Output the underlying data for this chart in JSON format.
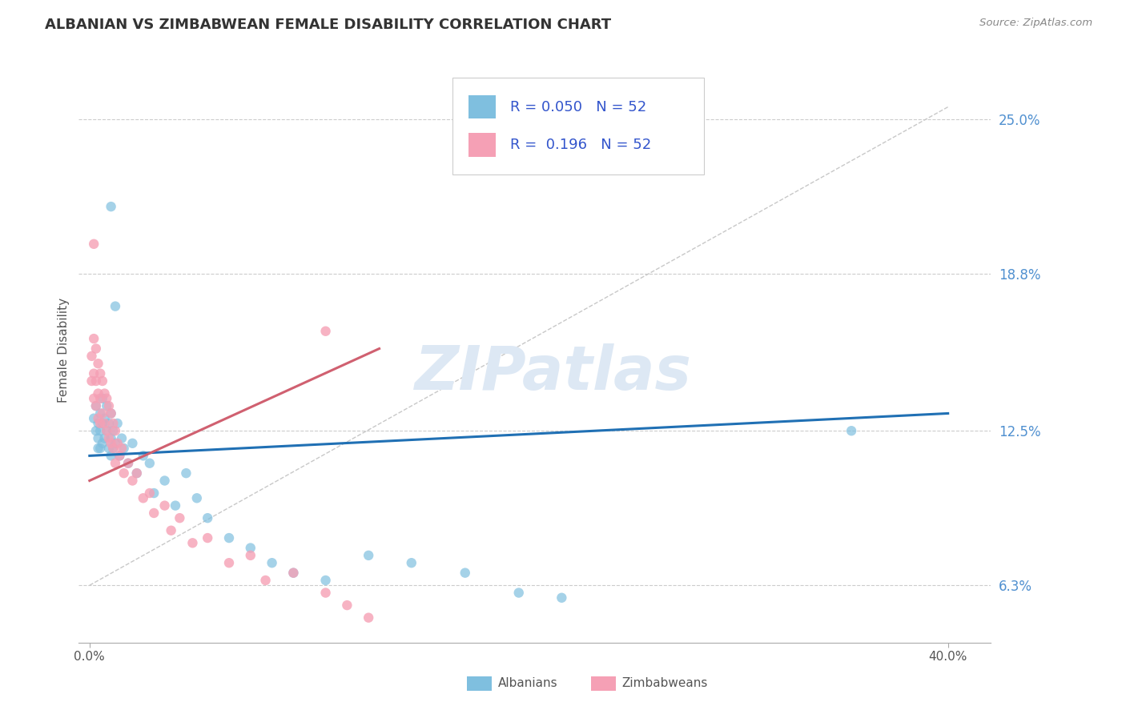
{
  "title": "ALBANIAN VS ZIMBABWEAN FEMALE DISABILITY CORRELATION CHART",
  "source": "Source: ZipAtlas.com",
  "ylabel": "Female Disability",
  "y_ticks": [
    0.063,
    0.125,
    0.188,
    0.25
  ],
  "y_tick_labels": [
    "6.3%",
    "12.5%",
    "18.8%",
    "25.0%"
  ],
  "xlim": [
    -0.005,
    0.42
  ],
  "ylim": [
    0.04,
    0.275
  ],
  "legend_label1": "Albanians",
  "legend_label2": "Zimbabweans",
  "R1": 0.05,
  "R2": 0.196,
  "N1": 52,
  "N2": 52,
  "color_albanian": "#7fbfdf",
  "color_zimbabwean": "#f5a0b5",
  "color_albanian_line": "#2070b4",
  "color_zimbabwean_line": "#d06070",
  "color_ref_line": "#c8c8c8",
  "watermark": "ZIPatlas",
  "background_color": "#ffffff",
  "alb_x": [
    0.002,
    0.003,
    0.003,
    0.004,
    0.004,
    0.004,
    0.005,
    0.005,
    0.005,
    0.006,
    0.006,
    0.006,
    0.007,
    0.007,
    0.008,
    0.008,
    0.009,
    0.009,
    0.01,
    0.01,
    0.01,
    0.011,
    0.011,
    0.012,
    0.013,
    0.014,
    0.015,
    0.016,
    0.018,
    0.02,
    0.022,
    0.025,
    0.028,
    0.03,
    0.035,
    0.04,
    0.045,
    0.05,
    0.055,
    0.065,
    0.075,
    0.085,
    0.095,
    0.11,
    0.13,
    0.15,
    0.175,
    0.2,
    0.22,
    0.355,
    0.01,
    0.012
  ],
  "alb_y": [
    0.13,
    0.125,
    0.135,
    0.122,
    0.128,
    0.118,
    0.132,
    0.125,
    0.118,
    0.138,
    0.128,
    0.12,
    0.13,
    0.122,
    0.135,
    0.125,
    0.128,
    0.118,
    0.132,
    0.122,
    0.115,
    0.125,
    0.118,
    0.12,
    0.128,
    0.115,
    0.122,
    0.118,
    0.112,
    0.12,
    0.108,
    0.115,
    0.112,
    0.1,
    0.105,
    0.095,
    0.108,
    0.098,
    0.09,
    0.082,
    0.078,
    0.072,
    0.068,
    0.065,
    0.075,
    0.072,
    0.068,
    0.06,
    0.058,
    0.125,
    0.215,
    0.175
  ],
  "zim_x": [
    0.001,
    0.001,
    0.002,
    0.002,
    0.002,
    0.003,
    0.003,
    0.003,
    0.004,
    0.004,
    0.004,
    0.005,
    0.005,
    0.005,
    0.006,
    0.006,
    0.007,
    0.007,
    0.008,
    0.008,
    0.009,
    0.009,
    0.01,
    0.01,
    0.011,
    0.011,
    0.012,
    0.012,
    0.013,
    0.014,
    0.015,
    0.016,
    0.018,
    0.02,
    0.022,
    0.025,
    0.028,
    0.03,
    0.035,
    0.038,
    0.042,
    0.048,
    0.055,
    0.065,
    0.075,
    0.082,
    0.095,
    0.11,
    0.12,
    0.13,
    0.002,
    0.11
  ],
  "zim_y": [
    0.155,
    0.145,
    0.162,
    0.148,
    0.138,
    0.158,
    0.145,
    0.135,
    0.152,
    0.14,
    0.13,
    0.148,
    0.138,
    0.128,
    0.145,
    0.132,
    0.14,
    0.128,
    0.138,
    0.125,
    0.135,
    0.122,
    0.132,
    0.12,
    0.128,
    0.118,
    0.125,
    0.112,
    0.12,
    0.115,
    0.118,
    0.108,
    0.112,
    0.105,
    0.108,
    0.098,
    0.1,
    0.092,
    0.095,
    0.085,
    0.09,
    0.08,
    0.082,
    0.072,
    0.075,
    0.065,
    0.068,
    0.06,
    0.055,
    0.05,
    0.2,
    0.165
  ],
  "alb_line_x": [
    0.0,
    0.4
  ],
  "alb_line_y": [
    0.115,
    0.132
  ],
  "zim_line_x": [
    0.0,
    0.135
  ],
  "zim_line_y": [
    0.105,
    0.158
  ],
  "ref_line_x": [
    0.0,
    0.4
  ],
  "ref_line_y": [
    0.063,
    0.255
  ]
}
